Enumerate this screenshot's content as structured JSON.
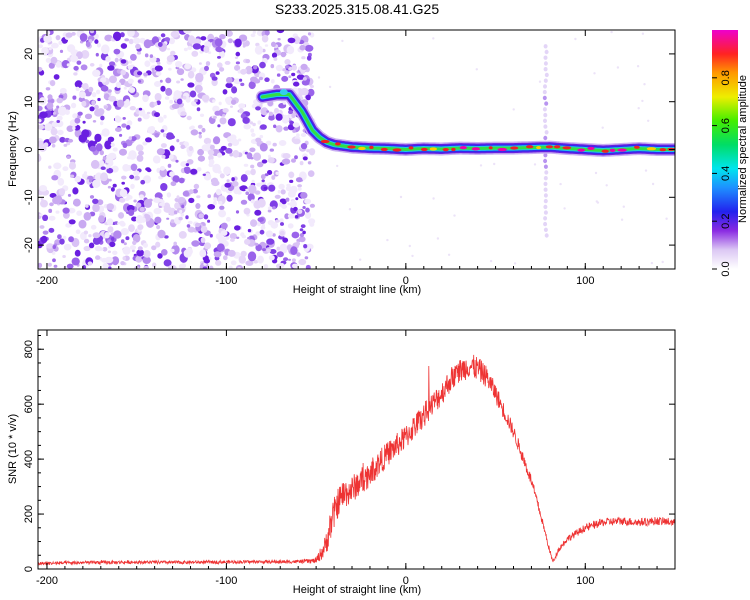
{
  "title": "S233.2025.315.08.41.G25",
  "chart_data": [
    {
      "type": "heatmap",
      "xlabel": "Height of straight line (km)",
      "ylabel": "Frequency (Hz)",
      "xlim": [
        -205,
        150
      ],
      "ylim": [
        -25,
        25
      ],
      "xticks": [
        -200,
        -100,
        0,
        100
      ],
      "xtick_labels": [
        "-200",
        "-100",
        "0",
        "100"
      ],
      "yticks": [
        -20,
        -10,
        0,
        10,
        20
      ],
      "ytick_labels": [
        "-20",
        "-10",
        "0",
        "10",
        "20"
      ],
      "noise_region_x": [
        -205,
        -52
      ],
      "colorbar": {
        "label": "Normalized spectral amplitude",
        "range": [
          0,
          1
        ],
        "ticks": [
          0,
          0.2,
          0.4,
          0.6,
          0.8
        ],
        "tick_labels": [
          "0.0",
          "0.2",
          "0.4",
          "0.6",
          "0.8"
        ]
      },
      "ridge": {
        "x": [
          -80,
          -72,
          -65,
          -58,
          -52,
          -48,
          -44,
          -40,
          -30,
          -20,
          -10,
          0,
          10,
          20,
          30,
          40,
          50,
          60,
          70,
          80,
          90,
          100,
          110,
          120,
          130,
          140,
          150
        ],
        "y": [
          11,
          11.5,
          11.5,
          8,
          4,
          2.5,
          1.5,
          1,
          0.5,
          0.3,
          0.2,
          0,
          0.2,
          0.1,
          0.3,
          0.2,
          0.3,
          0.3,
          0.4,
          0.5,
          0.2,
          0,
          -0.2,
          0,
          0.2,
          0,
          0
        ]
      },
      "streak": {
        "x": 78,
        "y_range": [
          -18,
          22
        ]
      }
    },
    {
      "type": "line",
      "xlabel": "Height of straight line (km)",
      "ylabel": "SNR (10 * v/v)",
      "xlim": [
        -205,
        150
      ],
      "ylim": [
        0,
        870
      ],
      "xticks": [
        -200,
        -100,
        0,
        100
      ],
      "xtick_labels": [
        "-200",
        "-100",
        "0",
        "100"
      ],
      "yticks": [
        0,
        200,
        400,
        600,
        800
      ],
      "ytick_labels": [
        "0",
        "200",
        "400",
        "600",
        "800"
      ],
      "color": "#ee3333",
      "series": [
        {
          "name": "SNR",
          "x": [
            -205,
            -190,
            -170,
            -150,
            -130,
            -110,
            -90,
            -70,
            -60,
            -50,
            -45,
            -42,
            -40,
            -38,
            -35,
            -30,
            -25,
            -20,
            -10,
            0,
            10,
            20,
            25,
            30,
            35,
            40,
            45,
            50,
            60,
            70,
            75,
            80,
            82,
            85,
            90,
            100,
            110,
            120,
            130,
            140,
            150
          ],
          "y": [
            20,
            22,
            24,
            25,
            24,
            25,
            26,
            26,
            27,
            30,
            80,
            160,
            200,
            240,
            270,
            290,
            320,
            350,
            420,
            480,
            560,
            640,
            690,
            720,
            740,
            730,
            700,
            640,
            500,
            320,
            200,
            70,
            25,
            70,
            110,
            150,
            170,
            175,
            170,
            175,
            170
          ],
          "noise": [
            6,
            6,
            6,
            6,
            6,
            6,
            6,
            6,
            6,
            10,
            40,
            60,
            60,
            55,
            55,
            50,
            50,
            50,
            45,
            45,
            45,
            45,
            45,
            45,
            45,
            45,
            40,
            35,
            25,
            20,
            15,
            10,
            8,
            10,
            12,
            14,
            15,
            15,
            15,
            15,
            15
          ]
        }
      ]
    }
  ]
}
